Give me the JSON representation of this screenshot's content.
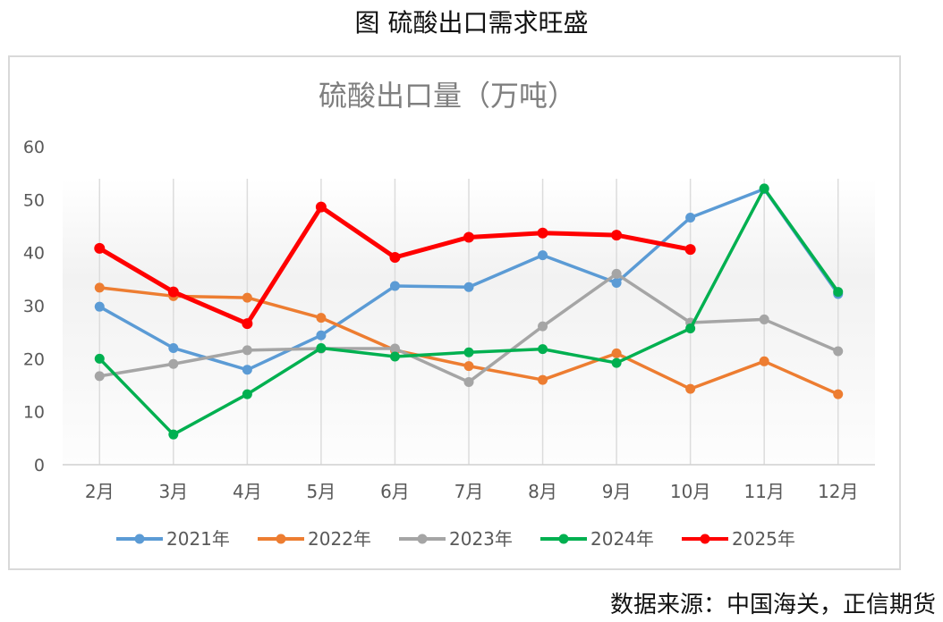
{
  "figure_title": "图 硫酸出口需求旺盛",
  "source": "数据来源：中国海关，正信期货",
  "chart_data": {
    "type": "line",
    "title": "硫酸出口量（万吨）",
    "xlabel": "",
    "ylabel": "",
    "ylim": [
      0,
      60
    ],
    "yticks": [
      "0",
      "10",
      "20",
      "30",
      "40",
      "50",
      "60"
    ],
    "categories": [
      "2月",
      "3月",
      "4月",
      "5月",
      "6月",
      "7月",
      "8月",
      "9月",
      "10月",
      "11月",
      "12月"
    ],
    "grid": "vertical",
    "legend": "bottom",
    "series": [
      {
        "name": "2021年",
        "color": "#5b9bd5",
        "values": [
          29.8,
          22.0,
          17.9,
          24.4,
          33.7,
          33.5,
          39.5,
          34.3,
          46.6,
          52.0,
          32.2
        ]
      },
      {
        "name": "2022年",
        "color": "#ed7d31",
        "values": [
          33.4,
          31.8,
          31.5,
          27.7,
          21.6,
          18.6,
          16.0,
          21.0,
          14.3,
          19.5,
          13.3
        ]
      },
      {
        "name": "2023年",
        "color": "#a5a5a5",
        "values": [
          16.7,
          19.0,
          21.6,
          21.9,
          21.9,
          15.6,
          26.1,
          36.0,
          26.8,
          27.4,
          21.4
        ]
      },
      {
        "name": "2024年",
        "color": "#00b050",
        "values": [
          20.0,
          5.7,
          13.3,
          22.0,
          20.4,
          21.2,
          21.8,
          19.2,
          25.7,
          52.1,
          32.6
        ]
      },
      {
        "name": "2025年",
        "color": "#ff0000",
        "values": [
          40.8,
          32.6,
          26.6,
          48.6,
          39.1,
          42.9,
          43.7,
          43.3,
          40.6,
          null,
          null
        ]
      }
    ]
  }
}
